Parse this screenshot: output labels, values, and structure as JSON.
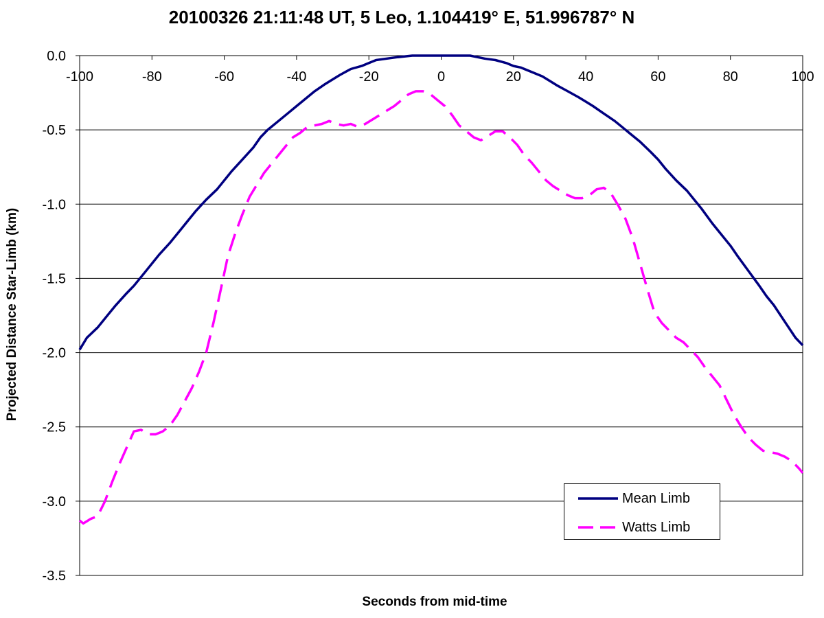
{
  "chart_data": {
    "type": "line",
    "title": "20100326 21:11:48 UT, 5 Leo, 1.104419° E, 51.996787° N",
    "xlabel": "Seconds from mid-time",
    "ylabel": "Projected Distance Star-Limb (km)",
    "xlim": [
      -100,
      100
    ],
    "ylim": [
      -3.5,
      0.0
    ],
    "x_ticks": [
      "-100",
      "-80",
      "-60",
      "-40",
      "-20",
      "0",
      "20",
      "40",
      "60",
      "80",
      "100"
    ],
    "y_ticks": [
      "0.0",
      "-0.5",
      "-1.0",
      "-1.5",
      "-2.0",
      "-2.5",
      "-3.0",
      "-3.5"
    ],
    "grid": "horizontal",
    "legend_position": "bottom-right",
    "series": [
      {
        "name": "Mean Limb",
        "color": "#000080",
        "style": "solid",
        "points": [
          [
            -100,
            -1.98
          ],
          [
            -98,
            -1.9
          ],
          [
            -95,
            -1.83
          ],
          [
            -92,
            -1.74
          ],
          [
            -90,
            -1.68
          ],
          [
            -87,
            -1.6
          ],
          [
            -85,
            -1.55
          ],
          [
            -82,
            -1.46
          ],
          [
            -80,
            -1.4
          ],
          [
            -78,
            -1.34
          ],
          [
            -75,
            -1.26
          ],
          [
            -72,
            -1.17
          ],
          [
            -70,
            -1.11
          ],
          [
            -68,
            -1.05
          ],
          [
            -65,
            -0.97
          ],
          [
            -62,
            -0.9
          ],
          [
            -60,
            -0.84
          ],
          [
            -58,
            -0.78
          ],
          [
            -55,
            -0.7
          ],
          [
            -52,
            -0.62
          ],
          [
            -50,
            -0.55
          ],
          [
            -48,
            -0.5
          ],
          [
            -45,
            -0.44
          ],
          [
            -42,
            -0.38
          ],
          [
            -40,
            -0.34
          ],
          [
            -38,
            -0.3
          ],
          [
            -35,
            -0.24
          ],
          [
            -32,
            -0.19
          ],
          [
            -30,
            -0.16
          ],
          [
            -28,
            -0.13
          ],
          [
            -25,
            -0.09
          ],
          [
            -22,
            -0.07
          ],
          [
            -20,
            -0.05
          ],
          [
            -18,
            -0.03
          ],
          [
            -15,
            -0.02
          ],
          [
            -12,
            -0.01
          ],
          [
            -10,
            -0.005
          ],
          [
            -8,
            0.0
          ],
          [
            -5,
            0.0
          ],
          [
            0,
            0.0
          ],
          [
            5,
            0.0
          ],
          [
            8,
            0.0
          ],
          [
            10,
            -0.01
          ],
          [
            12,
            -0.02
          ],
          [
            15,
            -0.03
          ],
          [
            18,
            -0.05
          ],
          [
            20,
            -0.07
          ],
          [
            22,
            -0.08
          ],
          [
            25,
            -0.11
          ],
          [
            28,
            -0.14
          ],
          [
            30,
            -0.17
          ],
          [
            32,
            -0.2
          ],
          [
            35,
            -0.24
          ],
          [
            38,
            -0.28
          ],
          [
            40,
            -0.31
          ],
          [
            42,
            -0.34
          ],
          [
            45,
            -0.39
          ],
          [
            48,
            -0.44
          ],
          [
            50,
            -0.48
          ],
          [
            52,
            -0.52
          ],
          [
            55,
            -0.58
          ],
          [
            58,
            -0.65
          ],
          [
            60,
            -0.7
          ],
          [
            62,
            -0.76
          ],
          [
            65,
            -0.84
          ],
          [
            68,
            -0.91
          ],
          [
            70,
            -0.97
          ],
          [
            72,
            -1.03
          ],
          [
            75,
            -1.13
          ],
          [
            78,
            -1.22
          ],
          [
            80,
            -1.28
          ],
          [
            82,
            -1.35
          ],
          [
            85,
            -1.45
          ],
          [
            88,
            -1.55
          ],
          [
            90,
            -1.62
          ],
          [
            92,
            -1.68
          ],
          [
            95,
            -1.79
          ],
          [
            98,
            -1.9
          ],
          [
            100,
            -1.95
          ]
        ]
      },
      {
        "name": "Watts Limb",
        "color": "#ff00ff",
        "style": "dashed",
        "points": [
          [
            -100,
            -3.13
          ],
          [
            -99,
            -3.15
          ],
          [
            -97,
            -3.12
          ],
          [
            -95,
            -3.1
          ],
          [
            -93,
            -3.0
          ],
          [
            -91,
            -2.87
          ],
          [
            -89,
            -2.75
          ],
          [
            -87,
            -2.64
          ],
          [
            -85,
            -2.53
          ],
          [
            -83,
            -2.52
          ],
          [
            -81,
            -2.55
          ],
          [
            -79,
            -2.55
          ],
          [
            -77,
            -2.53
          ],
          [
            -75,
            -2.49
          ],
          [
            -73,
            -2.42
          ],
          [
            -71,
            -2.33
          ],
          [
            -69,
            -2.24
          ],
          [
            -67,
            -2.13
          ],
          [
            -65,
            -2.0
          ],
          [
            -63,
            -1.8
          ],
          [
            -61,
            -1.58
          ],
          [
            -59,
            -1.35
          ],
          [
            -57,
            -1.2
          ],
          [
            -55,
            -1.07
          ],
          [
            -53,
            -0.95
          ],
          [
            -51,
            -0.87
          ],
          [
            -49,
            -0.79
          ],
          [
            -47,
            -0.73
          ],
          [
            -45,
            -0.67
          ],
          [
            -43,
            -0.61
          ],
          [
            -41,
            -0.55
          ],
          [
            -39,
            -0.52
          ],
          [
            -37,
            -0.48
          ],
          [
            -35,
            -0.47
          ],
          [
            -33,
            -0.46
          ],
          [
            -31,
            -0.44
          ],
          [
            -29,
            -0.46
          ],
          [
            -27,
            -0.47
          ],
          [
            -25,
            -0.46
          ],
          [
            -23,
            -0.48
          ],
          [
            -21,
            -0.46
          ],
          [
            -19,
            -0.43
          ],
          [
            -17,
            -0.4
          ],
          [
            -15,
            -0.37
          ],
          [
            -13,
            -0.34
          ],
          [
            -11,
            -0.3
          ],
          [
            -9,
            -0.26
          ],
          [
            -7,
            -0.24
          ],
          [
            -5,
            -0.24
          ],
          [
            -3,
            -0.26
          ],
          [
            -1,
            -0.3
          ],
          [
            1,
            -0.34
          ],
          [
            3,
            -0.4
          ],
          [
            5,
            -0.47
          ],
          [
            7,
            -0.51
          ],
          [
            9,
            -0.55
          ],
          [
            11,
            -0.57
          ],
          [
            13,
            -0.54
          ],
          [
            15,
            -0.51
          ],
          [
            17,
            -0.51
          ],
          [
            19,
            -0.55
          ],
          [
            21,
            -0.6
          ],
          [
            23,
            -0.67
          ],
          [
            25,
            -0.72
          ],
          [
            27,
            -0.78
          ],
          [
            29,
            -0.84
          ],
          [
            31,
            -0.88
          ],
          [
            33,
            -0.91
          ],
          [
            35,
            -0.94
          ],
          [
            37,
            -0.96
          ],
          [
            39,
            -0.96
          ],
          [
            41,
            -0.94
          ],
          [
            43,
            -0.9
          ],
          [
            45,
            -0.89
          ],
          [
            47,
            -0.93
          ],
          [
            49,
            -1.01
          ],
          [
            51,
            -1.1
          ],
          [
            53,
            -1.23
          ],
          [
            55,
            -1.4
          ],
          [
            57,
            -1.57
          ],
          [
            59,
            -1.73
          ],
          [
            61,
            -1.8
          ],
          [
            63,
            -1.85
          ],
          [
            65,
            -1.9
          ],
          [
            67,
            -1.93
          ],
          [
            69,
            -1.98
          ],
          [
            71,
            -2.03
          ],
          [
            73,
            -2.1
          ],
          [
            75,
            -2.16
          ],
          [
            77,
            -2.22
          ],
          [
            79,
            -2.32
          ],
          [
            81,
            -2.42
          ],
          [
            83,
            -2.5
          ],
          [
            85,
            -2.57
          ],
          [
            87,
            -2.62
          ],
          [
            89,
            -2.66
          ],
          [
            91,
            -2.67
          ],
          [
            93,
            -2.68
          ],
          [
            95,
            -2.7
          ],
          [
            97,
            -2.73
          ],
          [
            99,
            -2.78
          ],
          [
            100,
            -2.81
          ]
        ]
      }
    ]
  }
}
